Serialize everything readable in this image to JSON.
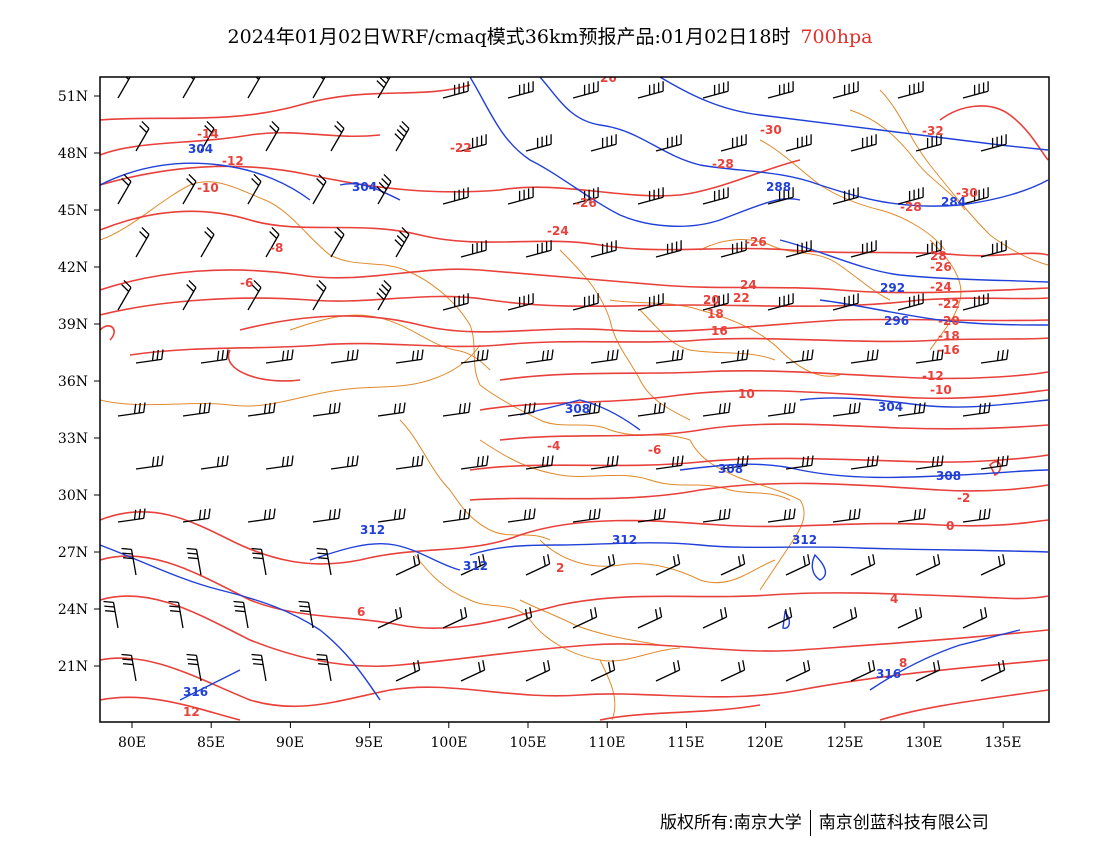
{
  "header": {
    "title": "2024年01月02日WRF/cmaq模式36km预报产品:01月02日18时",
    "level": "700hpa"
  },
  "footer": {
    "copyright": "版权所有:南京大学",
    "company": "南京创蓝科技有限公司"
  },
  "map": {
    "lon_labels": [
      "80E",
      "85E",
      "90E",
      "95E",
      "100E",
      "105E",
      "110E",
      "115E",
      "120E",
      "125E",
      "130E",
      "135E"
    ],
    "lat_labels": [
      "51N",
      "48N",
      "45N",
      "42N",
      "39N",
      "36N",
      "33N",
      "30N",
      "27N",
      "24N",
      "21N"
    ],
    "lon_range": [
      78,
      138
    ],
    "lat_range": [
      17.8,
      51.9
    ],
    "colors": {
      "temperature": "#e8403a",
      "height": "#2040d8",
      "boundary": "#e08a2c",
      "wind": "#000000"
    },
    "temperature_labels": [
      "-14",
      "-12",
      "-10",
      "-8",
      "-6",
      "-22",
      "-26",
      "-24",
      "-30",
      "-32",
      "-28",
      "-26",
      "-30",
      "-28",
      "-26",
      "-24",
      "-22",
      "-20",
      "-18",
      "-16",
      "-12",
      "-10",
      "-4",
      "-6",
      "-2",
      "0",
      "2",
      "4",
      "6",
      "8",
      "10",
      "12",
      "16",
      "18",
      "20",
      "22",
      "24",
      "26",
      "28"
    ],
    "height_labels": [
      "304",
      "304",
      "288",
      "284",
      "292",
      "296",
      "304",
      "308",
      "308",
      "308",
      "312",
      "312",
      "312",
      "312",
      "316",
      "316"
    ]
  }
}
